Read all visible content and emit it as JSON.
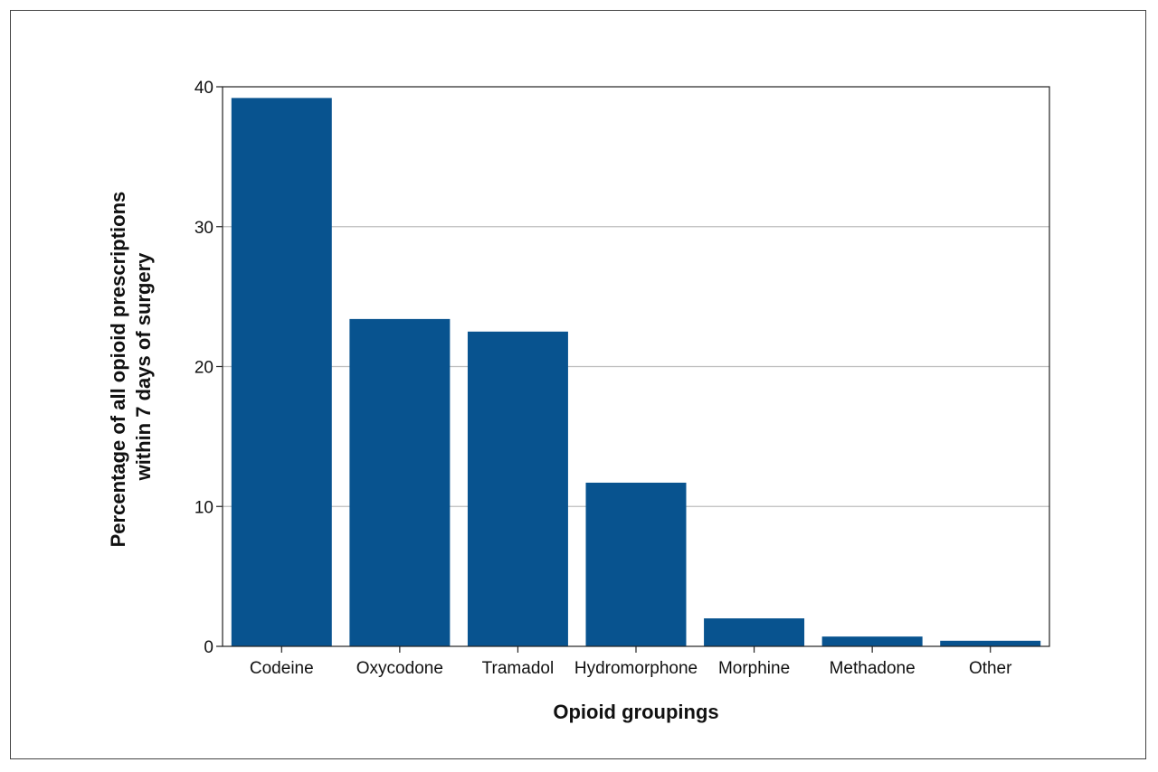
{
  "chart_data": {
    "type": "bar",
    "title": "",
    "xlabel": "Opioid groupings",
    "ylabel_lines": [
      "Percentage of all opioid prescriptions",
      "within 7 days of surgery"
    ],
    "categories": [
      "Codeine",
      "Oxycodone",
      "Tramadol",
      "Hydromorphone",
      "Morphine",
      "Methadone",
      "Other"
    ],
    "values": [
      39.2,
      23.4,
      22.5,
      11.7,
      2.0,
      0.7,
      0.4
    ],
    "ylim": [
      0,
      40
    ],
    "yticks": [
      "0",
      "10",
      "20",
      "30",
      "40"
    ],
    "grid": true,
    "bar_color": "#08538f",
    "grid_color": "#bdbdbd"
  }
}
